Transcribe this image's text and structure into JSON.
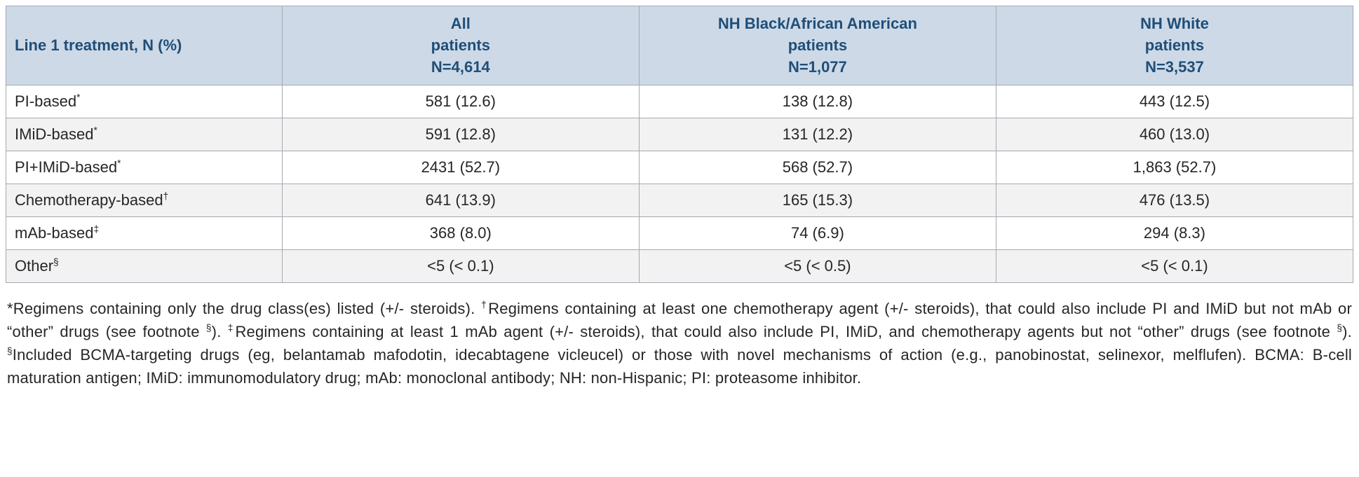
{
  "colors": {
    "header-bg": "#cdd9e6",
    "header-text": "#1f4e79",
    "row-alt-bg": "#f2f2f2",
    "border": "#a3aab2",
    "body-text": "#262626"
  },
  "table": {
    "header": {
      "col0": "Line 1 treatment, N (%)",
      "cols": [
        "All\npatients\nN=4,614",
        "NH Black/African American\npatients\nN=1,077",
        "NH White\npatients\nN=3,537"
      ]
    },
    "rows": [
      {
        "label": "PI-based",
        "marker": "*",
        "values": [
          "581 (12.6)",
          "138 (12.8)",
          "443 (12.5)"
        ]
      },
      {
        "label": "IMiD-based",
        "marker": "*",
        "values": [
          "591 (12.8)",
          "131 (12.2)",
          "460 (13.0)"
        ]
      },
      {
        "label": "PI+IMiD-based",
        "marker": "*",
        "values": [
          "2431 (52.7)",
          "568 (52.7)",
          "1,863 (52.7)"
        ]
      },
      {
        "label": "Chemotherapy-based",
        "marker": "†",
        "values": [
          "641 (13.9)",
          "165 (15.3)",
          "476 (13.5)"
        ]
      },
      {
        "label": "mAb-based",
        "marker": "‡",
        "values": [
          "368 (8.0)",
          "74 (6.9)",
          "294 (8.3)"
        ]
      },
      {
        "label": "Other",
        "marker": "§",
        "values": [
          "<5 (< 0.1)",
          "<5 (< 0.5)",
          "<5 (< 0.1)"
        ]
      }
    ]
  },
  "footnote": {
    "segments": [
      {
        "t": "*Regimens containing only the drug class(es) listed (+/- steroids). "
      },
      {
        "t": "†",
        "sup": true
      },
      {
        "t": "Regimens containing at least one chemotherapy agent (+/- steroids), that could also include PI and IMiD but not mAb or “other” drugs (see footnote "
      },
      {
        "t": "§",
        "sup": true
      },
      {
        "t": "). "
      },
      {
        "t": "‡",
        "sup": true
      },
      {
        "t": "Regimens containing at least 1 mAb agent (+/- steroids), that could also include PI, IMiD, and chemotherapy agents but not “other” drugs (see footnote "
      },
      {
        "t": "§",
        "sup": true
      },
      {
        "t": "). "
      },
      {
        "t": "§",
        "sup": true
      },
      {
        "t": "Included BCMA-targeting drugs (eg, belantamab mafodotin, idecabtagene vicleucel) or those with novel mechanisms of action (e.g., panobinostat, selinexor, melflufen). BCMA: B-cell maturation antigen; IMiD: immunomodulatory drug; mAb: monoclonal antibody; NH: non-Hispanic; PI: proteasome inhibitor."
      }
    ]
  }
}
